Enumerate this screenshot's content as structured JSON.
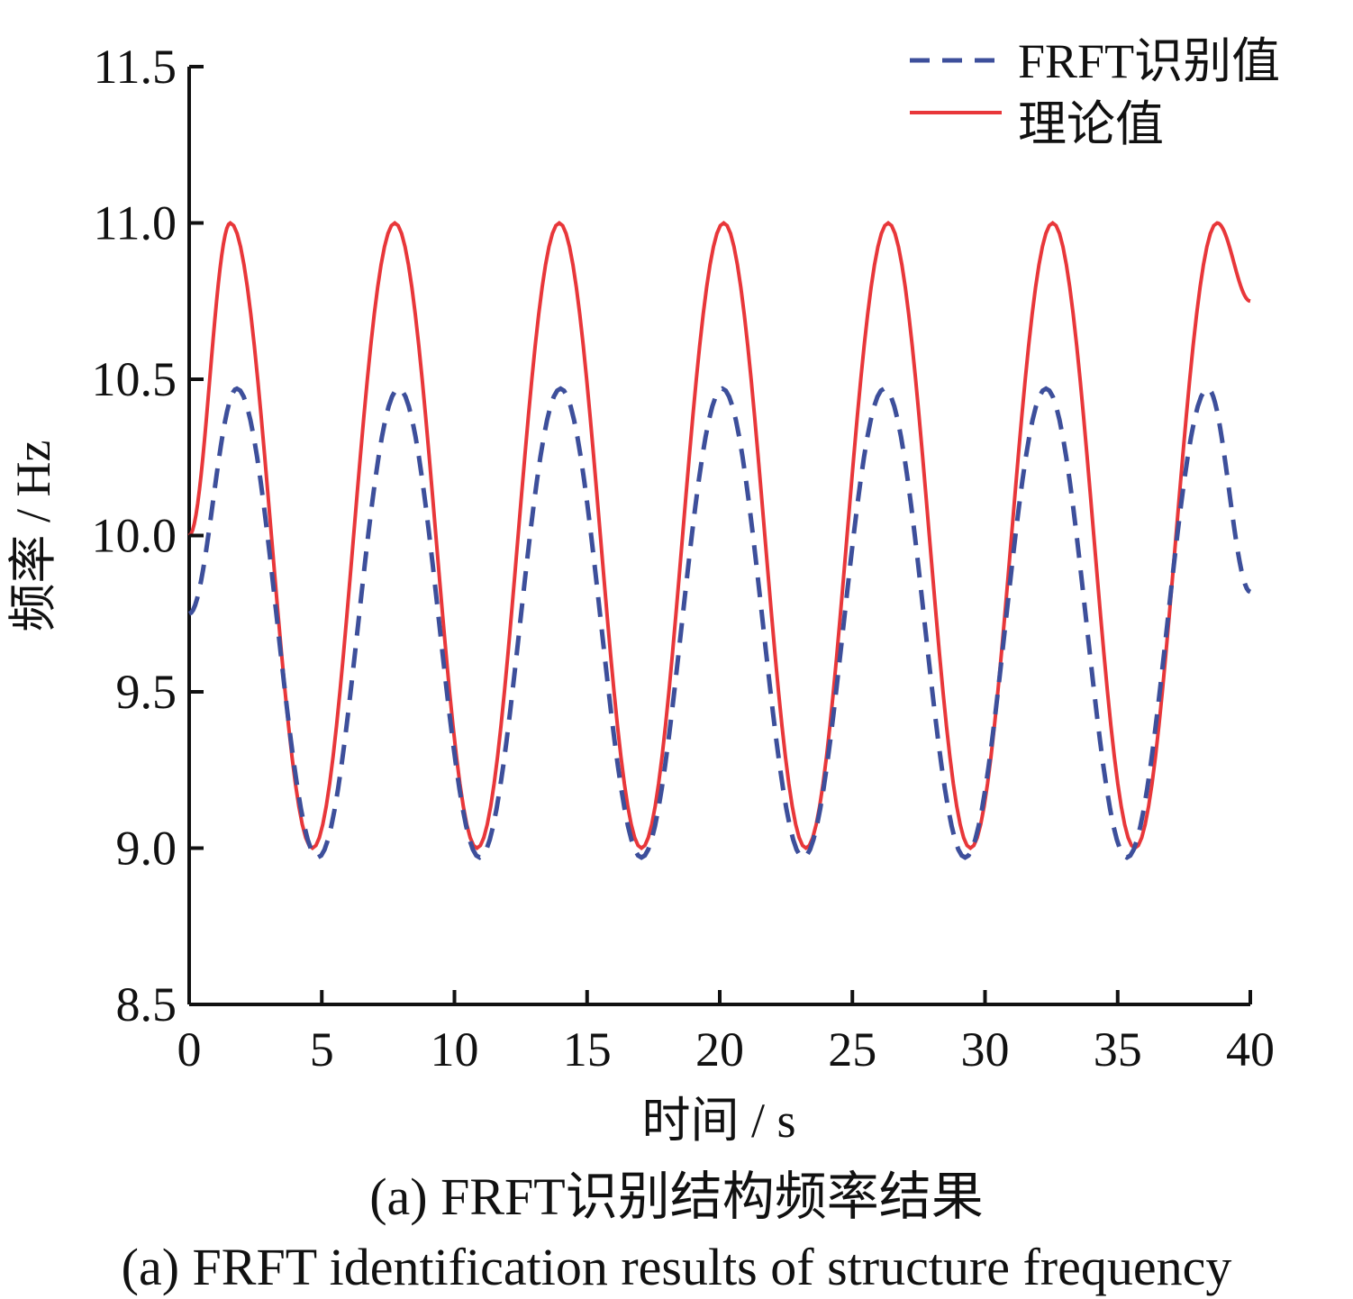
{
  "chart_data": {
    "type": "line",
    "xlabel": "时间 / s",
    "ylabel": "频率 / Hz",
    "xlim": [
      0,
      40
    ],
    "ylim": [
      8.5,
      11.5
    ],
    "xticks": [
      "0",
      "5",
      "10",
      "15",
      "20",
      "25",
      "30",
      "35",
      "40"
    ],
    "yticks": [
      "8.5",
      "9.0",
      "9.5",
      "10.0",
      "10.5",
      "11.0",
      "11.5"
    ],
    "grid": false,
    "legend_position": "top-right",
    "series": [
      {
        "name": "FRFT识别值",
        "style": "dashed",
        "color": "#3d4f9b",
        "x": [
          0,
          1.8,
          4.85,
          7.9,
          10.95,
          14.0,
          17.05,
          20.1,
          23.15,
          26.2,
          29.25,
          32.3,
          35.35,
          38.4,
          40
        ],
        "y": [
          9.75,
          10.47,
          8.97,
          10.47,
          8.97,
          10.47,
          8.97,
          10.47,
          8.97,
          10.47,
          8.97,
          10.47,
          8.97,
          10.47,
          9.82
        ]
      },
      {
        "name": "理论值",
        "style": "solid",
        "color": "#e8373a",
        "x": [
          0,
          1.55,
          4.65,
          7.75,
          10.85,
          13.95,
          17.05,
          20.15,
          23.25,
          26.35,
          29.45,
          32.55,
          35.65,
          38.75,
          40
        ],
        "y": [
          10.0,
          11.0,
          9.0,
          11.0,
          9.0,
          11.0,
          9.0,
          11.0,
          9.0,
          11.0,
          9.0,
          11.0,
          9.0,
          11.0,
          10.75
        ]
      }
    ]
  },
  "captions": {
    "cn": "(a) FRFT识别结构频率结果",
    "en": "(a) FRFT identification results of structure frequency"
  }
}
